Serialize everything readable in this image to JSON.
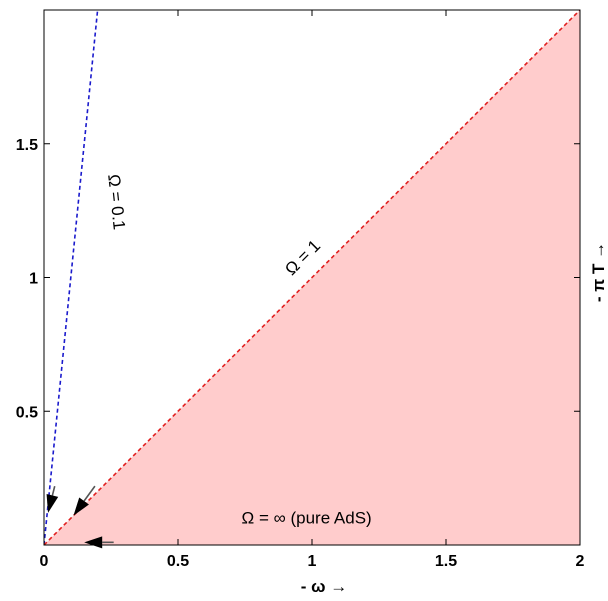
{
  "chart_data": {
    "type": "line",
    "xlabel": "- ω →",
    "ylabel": "- π T →",
    "xlim": [
      0,
      2
    ],
    "ylim": [
      0,
      2
    ],
    "xticks": [
      {
        "value": 0,
        "label": "0"
      },
      {
        "value": 0.5,
        "label": "0.5"
      },
      {
        "value": 1,
        "label": "1"
      },
      {
        "value": 1.5,
        "label": "1.5"
      },
      {
        "value": 2,
        "label": "2"
      }
    ],
    "yticks": [
      {
        "value": 0.5,
        "label": "0.5"
      },
      {
        "value": 1,
        "label": "1"
      },
      {
        "value": 1.5,
        "label": "1.5"
      }
    ],
    "series": [
      {
        "label": "Ω = 0.1",
        "color": "#1a1acc",
        "style": "dashed",
        "x": [
          0,
          0.2
        ],
        "y": [
          0,
          2
        ]
      },
      {
        "label": "Ω = 1",
        "color": "#e02020",
        "style": "dashed",
        "x": [
          0,
          2
        ],
        "y": [
          0,
          2
        ]
      }
    ],
    "shaded_region": {
      "label": "Ω = ∞ (pure AdS)",
      "color": "#ffcccc",
      "vertices": [
        [
          0,
          0
        ],
        [
          2,
          0
        ],
        [
          2,
          2
        ]
      ]
    },
    "arrows": [
      {
        "from": [
          0.04,
          0.22
        ],
        "to": [
          0.015,
          0.12
        ]
      },
      {
        "from": [
          0.19,
          0.22
        ],
        "to": [
          0.11,
          0.11
        ]
      },
      {
        "from": [
          0.26,
          0.01
        ],
        "to": [
          0.15,
          0.01
        ]
      }
    ],
    "grid": false
  }
}
